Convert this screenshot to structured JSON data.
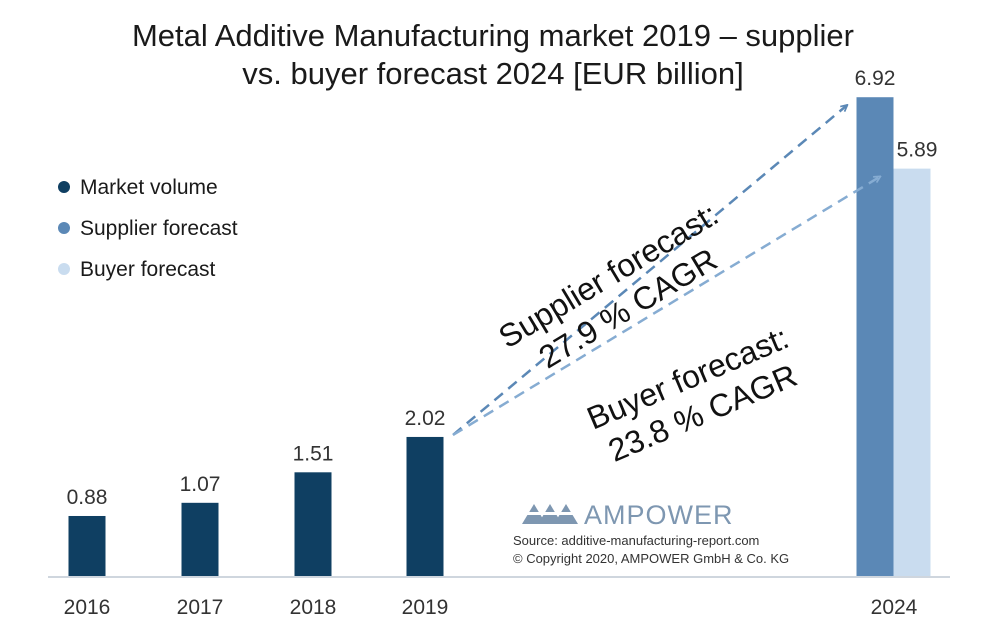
{
  "chart_data": {
    "type": "bar",
    "title_lines": [
      "Metal Additive Manufacturing market 2019 – supplier",
      "vs. buyer forecast 2024 [EUR billion]"
    ],
    "categories": [
      "2016",
      "2017",
      "2018",
      "2019",
      "2024"
    ],
    "series": [
      {
        "name": "Market volume",
        "color": "#0f3f62",
        "points": [
          {
            "x": "2016",
            "y": 0.88,
            "label": "0.88"
          },
          {
            "x": "2017",
            "y": 1.07,
            "label": "1.07"
          },
          {
            "x": "2018",
            "y": 1.51,
            "label": "1.51"
          },
          {
            "x": "2019",
            "y": 2.02,
            "label": "2.02"
          }
        ]
      },
      {
        "name": "Supplier forecast",
        "color": "#5b88b6",
        "points": [
          {
            "x": "2024",
            "y": 6.92,
            "label": "6.92"
          }
        ]
      },
      {
        "name": "Buyer forecast",
        "color": "#c9dcef",
        "points": [
          {
            "x": "2024",
            "y": 5.89,
            "label": "5.89"
          }
        ]
      }
    ],
    "annotations": [
      {
        "series": "Supplier forecast",
        "lines": [
          "Supplier forecast:",
          "27.9 % CAGR"
        ],
        "from": {
          "x": "2019",
          "y": 2.02
        },
        "to": {
          "x": "2024",
          "y": 6.92
        }
      },
      {
        "series": "Buyer forecast",
        "lines": [
          "Buyer forecast:",
          "23.8 % CAGR"
        ],
        "from": {
          "x": "2019",
          "y": 2.02
        },
        "to": {
          "x": "2024",
          "y": 5.89
        }
      }
    ],
    "ylim": [
      0,
      7.5
    ],
    "grid": false,
    "legend_position": "top-left",
    "xlabel": "",
    "ylabel": ""
  },
  "branding": {
    "logo_text": "AMPOWER",
    "logo_color": "#7e97b1",
    "source_line": "Source: additive-manufacturing-report.com",
    "copyright_line": "© Copyright 2020, AMPOWER GmbH & Co. KG"
  }
}
